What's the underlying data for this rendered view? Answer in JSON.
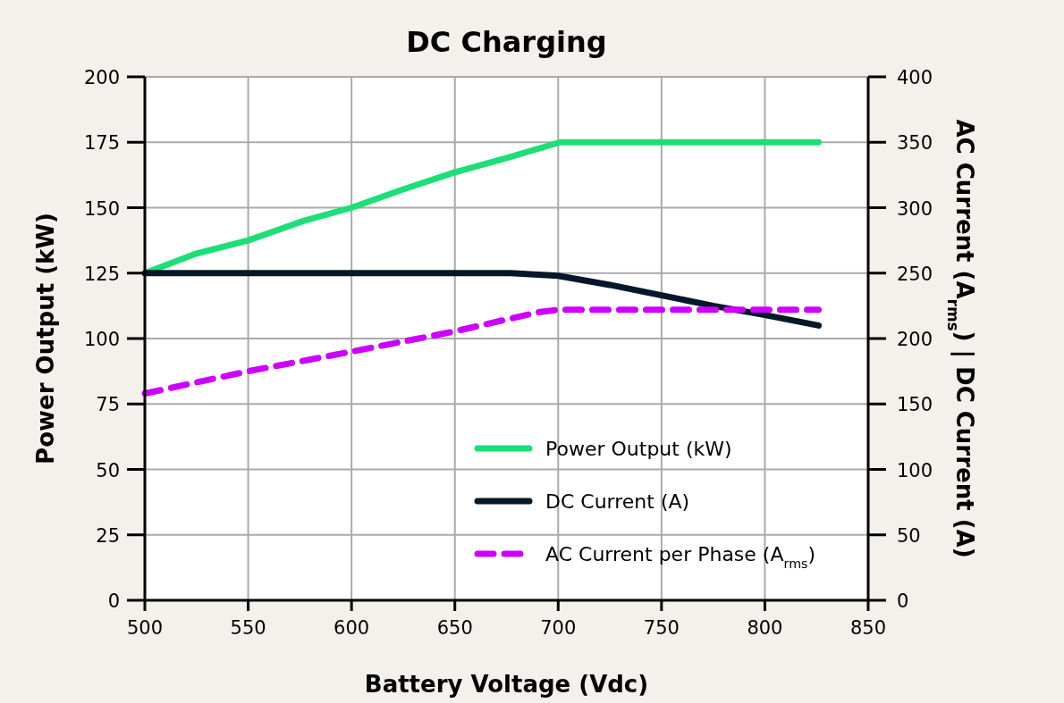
{
  "chart_data": {
    "type": "line",
    "title": "DC Charging",
    "xlabel": "Battery Voltage (Vdc)",
    "ylabel": "Power Output (kW)",
    "y2label": "AC Current (A$_{rms}$) | DC Current (A)",
    "xlim": [
      500,
      850
    ],
    "xticks": [
      500,
      550,
      600,
      650,
      700,
      750,
      800,
      850
    ],
    "ylim": [
      0,
      200
    ],
    "yticks": [
      0,
      25,
      50,
      75,
      100,
      125,
      150,
      175,
      200
    ],
    "y2lim": [
      0,
      400
    ],
    "y2ticks": [
      0,
      50,
      100,
      150,
      200,
      250,
      300,
      350,
      400
    ],
    "grid": true,
    "legend": "bottom right",
    "marker": "none",
    "series": [
      {
        "name": "Power Output (kW)",
        "color": "#1ede78",
        "line_style": "solid",
        "x": [
          500,
          525,
          550,
          577,
          600,
          625,
          650,
          675,
          701,
          826
        ],
        "values": [
          125,
          132.5,
          137.5,
          145,
          150,
          157,
          163.5,
          169,
          175,
          175
        ]
      },
      {
        "name": "DC Current (A)",
        "color": "#06172a",
        "line_style": "solid",
        "axis": "y2",
        "x": [
          500,
          677,
          700,
          725,
          750,
          775,
          800,
          826
        ],
        "values": [
          250,
          250,
          248,
          241,
          233,
          225,
          218,
          210
        ]
      },
      {
        "name": "AC Current per Phase (A$_{rms}$)",
        "color": "#cc00ff",
        "line_style": "dashed",
        "axis": "y2",
        "x": [
          500,
          550,
          600,
          650,
          690,
          700,
          826
        ],
        "values": [
          158,
          175,
          190,
          205.5,
          220,
          222,
          222
        ]
      }
    ]
  }
}
